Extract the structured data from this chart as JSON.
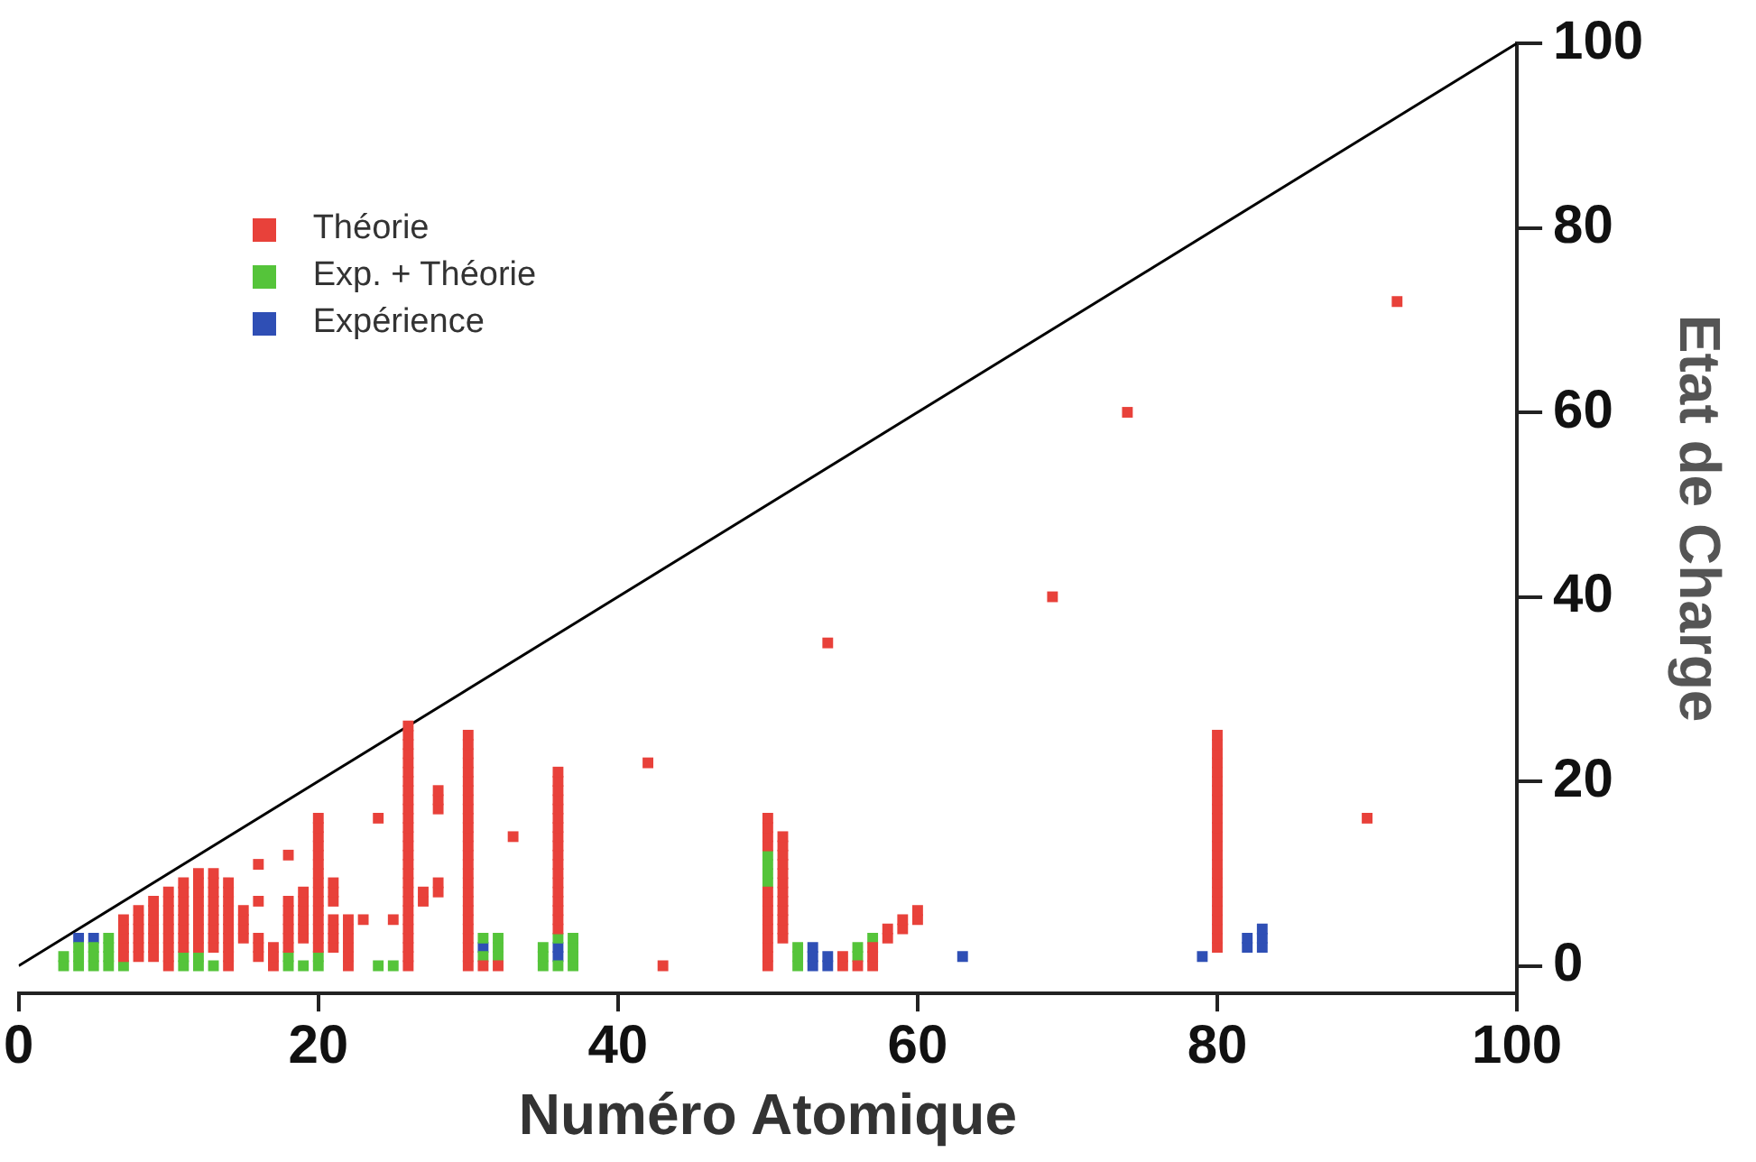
{
  "chart_data": {
    "type": "scatter",
    "xlabel": "Numéro Atomique",
    "ylabel": "Etat de Charge",
    "xlim": [
      0,
      100
    ],
    "ylim": [
      -3,
      100
    ],
    "xticks": [
      0,
      20,
      40,
      60,
      80,
      100
    ],
    "yticks": [
      0,
      20,
      40,
      60,
      80,
      100
    ],
    "grid": false,
    "legend": "top left",
    "marker": "square",
    "series": [
      {
        "name": "Théorie",
        "color": "#e8413a",
        "x": [
          7,
          7,
          7,
          7,
          7,
          8,
          8,
          8,
          8,
          8,
          8,
          9,
          9,
          9,
          9,
          9,
          9,
          9,
          10,
          10,
          10,
          10,
          10,
          10,
          10,
          10,
          10,
          11,
          11,
          11,
          11,
          11,
          11,
          11,
          11,
          12,
          12,
          12,
          12,
          12,
          12,
          12,
          12,
          12,
          13,
          13,
          13,
          13,
          13,
          13,
          13,
          13,
          13,
          14,
          14,
          14,
          14,
          14,
          14,
          14,
          14,
          14,
          14,
          15,
          15,
          15,
          15,
          16,
          16,
          16,
          16,
          16,
          17,
          17,
          17,
          18,
          18,
          18,
          18,
          18,
          18,
          18,
          19,
          19,
          19,
          19,
          19,
          19,
          20,
          20,
          20,
          20,
          20,
          20,
          20,
          20,
          20,
          20,
          20,
          20,
          20,
          20,
          20,
          21,
          21,
          21,
          21,
          21,
          21,
          21,
          22,
          22,
          22,
          22,
          22,
          22,
          23,
          24,
          25,
          26,
          26,
          26,
          26,
          26,
          26,
          26,
          26,
          26,
          26,
          26,
          26,
          26,
          26,
          26,
          26,
          26,
          26,
          26,
          26,
          26,
          26,
          26,
          26,
          26,
          26,
          26,
          27,
          27,
          28,
          28,
          28,
          28,
          28,
          30,
          30,
          30,
          30,
          30,
          30,
          30,
          30,
          30,
          30,
          30,
          30,
          30,
          30,
          30,
          30,
          30,
          30,
          30,
          30,
          30,
          30,
          30,
          30,
          30,
          30,
          31,
          32,
          33,
          36,
          36,
          36,
          36,
          36,
          36,
          36,
          36,
          36,
          36,
          36,
          36,
          36,
          36,
          36,
          36,
          36,
          36,
          42,
          43,
          50,
          50,
          50,
          50,
          50,
          50,
          50,
          50,
          50,
          50,
          50,
          50,
          50,
          51,
          51,
          51,
          51,
          51,
          51,
          51,
          51,
          51,
          51,
          51,
          51,
          54,
          55,
          55,
          56,
          57,
          57,
          57,
          58,
          58,
          59,
          59,
          60,
          60,
          69,
          74,
          80,
          80,
          80,
          80,
          80,
          80,
          80,
          80,
          80,
          80,
          80,
          80,
          80,
          80,
          80,
          80,
          80,
          80,
          80,
          80,
          80,
          80,
          80,
          80,
          90,
          92
        ],
        "values": [
          1,
          2,
          3,
          4,
          5,
          1,
          2,
          3,
          4,
          5,
          6,
          1,
          2,
          3,
          4,
          5,
          6,
          7,
          0,
          1,
          2,
          3,
          4,
          5,
          6,
          7,
          8,
          2,
          3,
          4,
          5,
          6,
          7,
          8,
          9,
          2,
          3,
          4,
          5,
          6,
          7,
          8,
          9,
          10,
          2,
          3,
          4,
          5,
          6,
          7,
          8,
          9,
          10,
          0,
          1,
          2,
          3,
          4,
          5,
          6,
          7,
          8,
          9,
          3,
          4,
          5,
          6,
          1,
          2,
          3,
          7,
          11,
          0,
          1,
          2,
          2,
          3,
          4,
          5,
          6,
          7,
          12,
          3,
          4,
          5,
          6,
          7,
          8,
          2,
          3,
          4,
          5,
          6,
          7,
          8,
          9,
          10,
          11,
          12,
          13,
          14,
          15,
          16,
          2,
          3,
          4,
          5,
          7,
          8,
          9,
          0,
          1,
          2,
          3,
          4,
          5,
          5,
          16,
          5,
          0,
          1,
          2,
          3,
          4,
          5,
          6,
          7,
          8,
          9,
          10,
          11,
          12,
          13,
          14,
          15,
          16,
          17,
          18,
          19,
          20,
          21,
          22,
          23,
          24,
          25,
          26,
          7,
          8,
          8,
          9,
          17,
          18,
          19,
          0,
          1,
          2,
          3,
          4,
          5,
          6,
          7,
          8,
          9,
          10,
          11,
          12,
          13,
          14,
          15,
          16,
          17,
          18,
          19,
          20,
          21,
          22,
          23,
          24,
          25,
          0,
          0,
          14,
          4,
          5,
          6,
          7,
          8,
          9,
          10,
          11,
          12,
          13,
          14,
          15,
          16,
          17,
          18,
          19,
          20,
          21,
          22,
          0,
          0,
          1,
          2,
          3,
          4,
          5,
          6,
          7,
          8,
          13,
          14,
          15,
          16,
          3,
          4,
          5,
          6,
          7,
          8,
          9,
          10,
          11,
          12,
          13,
          14,
          35,
          0,
          1,
          0,
          0,
          1,
          2,
          3,
          4,
          4,
          5,
          5,
          6,
          40,
          60,
          2,
          3,
          4,
          5,
          6,
          7,
          8,
          9,
          10,
          11,
          12,
          13,
          14,
          15,
          16,
          17,
          18,
          19,
          20,
          21,
          22,
          23,
          24,
          25,
          16,
          72
        ]
      },
      {
        "name": "Exp. + Théorie",
        "color": "#55c43a",
        "x": [
          3,
          3,
          4,
          4,
          4,
          5,
          5,
          5,
          6,
          6,
          6,
          6,
          7,
          11,
          11,
          12,
          12,
          13,
          18,
          18,
          19,
          20,
          20,
          24,
          25,
          31,
          31,
          32,
          32,
          32,
          35,
          35,
          35,
          36,
          36,
          37,
          37,
          37,
          37,
          50,
          50,
          50,
          50,
          52,
          52,
          52,
          56,
          56,
          57
        ],
        "values": [
          0,
          1,
          0,
          1,
          2,
          0,
          1,
          2,
          0,
          1,
          2,
          3,
          0,
          0,
          1,
          0,
          1,
          0,
          0,
          1,
          0,
          0,
          1,
          0,
          0,
          1,
          3,
          1,
          2,
          3,
          0,
          1,
          2,
          0,
          3,
          0,
          1,
          2,
          3,
          9,
          10,
          11,
          12,
          0,
          1,
          2,
          1,
          2,
          3
        ]
      },
      {
        "name": "Expérience",
        "color": "#2f4fb5",
        "x": [
          4,
          5,
          31,
          36,
          36,
          53,
          53,
          53,
          54,
          54,
          63,
          79,
          82,
          82,
          83,
          83,
          83
        ],
        "values": [
          3,
          3,
          2,
          1,
          2,
          0,
          1,
          2,
          0,
          1,
          1,
          1,
          2,
          3,
          2,
          3,
          4
        ]
      },
      {
        "type": "line",
        "marker": "none",
        "color": "#000000",
        "x": [
          0,
          100
        ],
        "values": [
          0,
          100
        ]
      }
    ]
  }
}
